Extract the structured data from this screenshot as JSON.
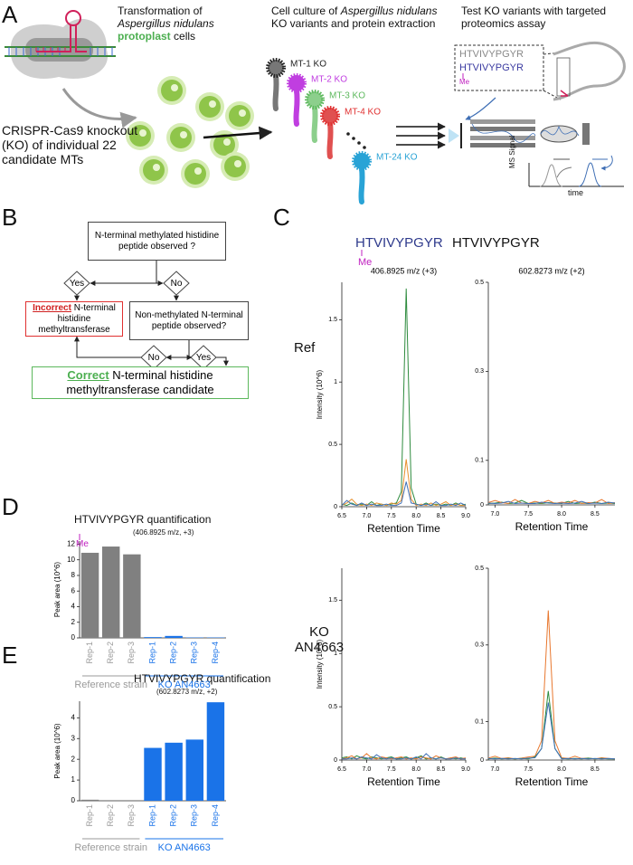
{
  "panel_a": {
    "label": "A",
    "step1": {
      "line1": "Transformation of",
      "organism": "Aspergillus nidulans",
      "highlight": "protoplast",
      "rest": "cells"
    },
    "knockout": "CRISPR-Cas9 knockout (KO) of individual 22 candidate MTs",
    "step2": {
      "line1": "Cell culture of",
      "organism": "Aspergillus nidulans",
      "rest": "KO variants and protein extraction"
    },
    "strains": [
      {
        "label": "MT-1 KO",
        "color": "#222222"
      },
      {
        "label": "MT-2 KO",
        "color": "#c03ee0"
      },
      {
        "label": "MT-3 KO",
        "color": "#5cb85c"
      },
      {
        "label": "MT-4 KO",
        "color": "#e03030"
      },
      {
        "label": "MT-24 KO",
        "color": "#29a3d6"
      }
    ],
    "step3": "Test KO variants with targeted proteomics assay",
    "peptide_plain": "HTVIVYPGYR",
    "peptide_methyl": "HTVIVYPGYR",
    "methyl": "Me",
    "signal_axis": "MS Signal",
    "time_axis": "time"
  },
  "panel_b": {
    "label": "B",
    "question1": "N-terminal methylated histidine peptide observed ?",
    "yes1": "Yes",
    "no1": "No",
    "incorrect": {
      "emphasis": "Incorrect",
      "text": "N-terminal histidine methyltransferase"
    },
    "question2": "Non-methylated N-terminal peptide observed?",
    "no2": "No",
    "yes2": "Yes",
    "correct": {
      "emphasis": "Correct",
      "text": "N-terminal histidine methyltransferase candidate"
    }
  },
  "panel_c": {
    "label": "C",
    "columns": [
      {
        "peptide": "HTVIVYPGYR",
        "methyl": "Me"
      },
      {
        "peptide": "HTVIVYPGYR"
      }
    ],
    "rows": [
      "Ref",
      "KO AN4663"
    ]
  },
  "panel_d": {
    "label": "D"
  },
  "panel_e": {
    "label": "E"
  },
  "chart_data": [
    {
      "type": "line",
      "title": "406.8925 m/z (+3)",
      "x_label": "Retention Time",
      "y_label": "Intensity (10^6)",
      "x": [
        6.5,
        6.6,
        6.7,
        6.8,
        6.9,
        7.0,
        7.1,
        7.2,
        7.3,
        7.4,
        7.5,
        7.6,
        7.7,
        7.8,
        7.9,
        8.0,
        8.1,
        8.2,
        8.3,
        8.4,
        8.5,
        8.6,
        8.7,
        8.8,
        8.9,
        9.0
      ],
      "series": [
        {
          "color": "#2e8b3e",
          "values": [
            0.02,
            0.01,
            0.03,
            0.01,
            0.02,
            0.01,
            0.04,
            0.01,
            0.02,
            0.01,
            0.02,
            0.03,
            0.12,
            1.75,
            0.15,
            0.02,
            0.01,
            0.03,
            0.01,
            0.02,
            0.01,
            0.02,
            0.01,
            0.03,
            0.01,
            0.02
          ]
        },
        {
          "color": "#e8902e",
          "values": [
            0.01,
            0.03,
            0.06,
            0.02,
            0.01,
            0.02,
            0.01,
            0.03,
            0.02,
            0.01,
            0.03,
            0.02,
            0.05,
            0.38,
            0.06,
            0.01,
            0.02,
            0.01,
            0.03,
            0.01,
            0.02,
            0.04,
            0.01,
            0.02,
            0.01,
            0.01
          ]
        },
        {
          "color": "#3f6fb5",
          "values": [
            0.01,
            0.05,
            0.02,
            0.01,
            0.03,
            0.01,
            0.02,
            0.01,
            0.01,
            0.02,
            0.01,
            0.01,
            0.03,
            0.2,
            0.03,
            0.02,
            0.01,
            0.02,
            0.01,
            0.04,
            0.01,
            0.01,
            0.02,
            0.01,
            0.03,
            0.01
          ]
        }
      ],
      "xlim": [
        6.5,
        9.0
      ],
      "xticks": [
        6.5,
        {
          "value": 7,
          "label": "7.0"
        },
        7.5,
        {
          "value": 8,
          "label": "8.0"
        },
        8.5,
        {
          "value": 9,
          "label": "9.0"
        }
      ],
      "ylim": [
        0,
        1.8
      ],
      "yticks": [
        0,
        0.5,
        1,
        1.5
      ]
    },
    {
      "type": "line",
      "title": "602.8273 m/z (+2)",
      "x_label": "Retention Time",
      "x": [
        6.9,
        7.0,
        7.1,
        7.2,
        7.3,
        7.4,
        7.5,
        7.6,
        7.7,
        7.8,
        7.9,
        8.0,
        8.1,
        8.2,
        8.3,
        8.4,
        8.5,
        8.6,
        8.7,
        8.8
      ],
      "series": [
        {
          "color": "#2e8b3e",
          "values": [
            0.003,
            0.004,
            0.006,
            0.003,
            0.004,
            0.01,
            0.003,
            0.004,
            0.003,
            0.005,
            0.004,
            0.003,
            0.008,
            0.003,
            0.004,
            0.003,
            0.006,
            0.003,
            0.004,
            0.003
          ]
        },
        {
          "color": "#e8772e",
          "values": [
            0.005,
            0.01,
            0.005,
            0.003,
            0.012,
            0.004,
            0.003,
            0.008,
            0.004,
            0.01,
            0.003,
            0.006,
            0.004,
            0.01,
            0.003,
            0.005,
            0.004,
            0.012,
            0.003,
            0.005
          ]
        },
        {
          "color": "#3f6fb5",
          "values": [
            0.004,
            0.003,
            0.004,
            0.008,
            0.003,
            0.004,
            0.003,
            0.003,
            0.006,
            0.004,
            0.003,
            0.004,
            0.003,
            0.004,
            0.008,
            0.003,
            0.004,
            0.003,
            0.006,
            0.004
          ]
        }
      ],
      "xlim": [
        6.9,
        8.8
      ],
      "xticks": [
        {
          "value": 7,
          "label": "7.0"
        },
        7.5,
        {
          "value": 8,
          "label": "8.0"
        },
        8.5
      ],
      "ylim": [
        0,
        0.5
      ],
      "yticks": [
        0,
        0.1,
        0.3,
        0.5
      ]
    },
    {
      "type": "line",
      "x_label": "Retention Time",
      "y_label": "Intensity (10^6)",
      "x": [
        6.5,
        6.6,
        6.7,
        6.8,
        6.9,
        7.0,
        7.1,
        7.2,
        7.3,
        7.4,
        7.5,
        7.6,
        7.7,
        7.8,
        7.9,
        8.0,
        8.1,
        8.2,
        8.3,
        8.4,
        8.5,
        8.6,
        8.7,
        8.8,
        8.9,
        9.0
      ],
      "series": [
        {
          "color": "#2e8b3e",
          "values": [
            0.02,
            0.03,
            0.01,
            0.04,
            0.02,
            0.01,
            0.03,
            0.02,
            0.01,
            0.02,
            0.03,
            0.01,
            0.02,
            0.03,
            0.01,
            0.02,
            0.04,
            0.01,
            0.02,
            0.01,
            0.03,
            0.01,
            0.02,
            0.01,
            0.02,
            0.01
          ]
        },
        {
          "color": "#e8772e",
          "values": [
            0.01,
            0.02,
            0.04,
            0.01,
            0.02,
            0.06,
            0.02,
            0.01,
            0.03,
            0.02,
            0.01,
            0.02,
            0.03,
            0.01,
            0.02,
            0.01,
            0.03,
            0.02,
            0.01,
            0.04,
            0.02,
            0.01,
            0.02,
            0.03,
            0.01,
            0.02
          ]
        },
        {
          "color": "#3f6fb5",
          "values": [
            0.01,
            0.01,
            0.02,
            0.01,
            0.03,
            0.02,
            0.01,
            0.05,
            0.02,
            0.01,
            0.02,
            0.01,
            0.01,
            0.02,
            0.01,
            0.03,
            0.01,
            0.06,
            0.02,
            0.01,
            0.02,
            0.01,
            0.01,
            0.02,
            0.01,
            0.01
          ]
        }
      ],
      "xlim": [
        6.5,
        9.0
      ],
      "xticks": [
        6.5,
        {
          "value": 7,
          "label": "7.0"
        },
        7.5,
        {
          "value": 8,
          "label": "8.0"
        },
        8.5,
        {
          "value": 9,
          "label": "9.0"
        }
      ],
      "ylim": [
        0,
        1.8
      ],
      "yticks": [
        0,
        0.5,
        1,
        1.5
      ]
    },
    {
      "type": "line",
      "x_label": "Retention Time",
      "x": [
        6.9,
        7.0,
        7.1,
        7.2,
        7.3,
        7.4,
        7.5,
        7.6,
        7.7,
        7.8,
        7.9,
        8.0,
        8.1,
        8.2,
        8.3,
        8.4,
        8.5,
        8.6,
        8.7,
        8.8
      ],
      "series": [
        {
          "color": "#e8772e",
          "values": [
            0.005,
            0.01,
            0.004,
            0.006,
            0.003,
            0.005,
            0.008,
            0.01,
            0.05,
            0.39,
            0.05,
            0.006,
            0.004,
            0.01,
            0.004,
            0.005,
            0.003,
            0.006,
            0.004,
            0.003
          ]
        },
        {
          "color": "#2e8b3e",
          "values": [
            0.003,
            0.005,
            0.003,
            0.004,
            0.003,
            0.004,
            0.003,
            0.008,
            0.03,
            0.18,
            0.03,
            0.004,
            0.003,
            0.004,
            0.003,
            0.005,
            0.003,
            0.004,
            0.003,
            0.003
          ]
        },
        {
          "color": "#3f6fb5",
          "values": [
            0.004,
            0.003,
            0.004,
            0.003,
            0.004,
            0.003,
            0.005,
            0.006,
            0.03,
            0.15,
            0.03,
            0.003,
            0.004,
            0.003,
            0.004,
            0.003,
            0.004,
            0.003,
            0.004,
            0.003
          ]
        }
      ],
      "xlim": [
        6.9,
        8.8
      ],
      "xticks": [
        {
          "value": 7,
          "label": "7.0"
        },
        7.5,
        {
          "value": 8,
          "label": "8.0"
        },
        8.5
      ],
      "ylim": [
        0,
        0.5
      ],
      "yticks": [
        0,
        0.1,
        0.3,
        0.5
      ]
    },
    {
      "type": "bar",
      "title": "HTVIVYPGYR quantification",
      "methyl": "Me",
      "subtitle": "(406.8925 m/z, +3)",
      "y_label": "Peak area (10^6)",
      "categories": [
        "Rep-1",
        "Rep-2",
        "Rep-3",
        "Rep-1",
        "Rep-2",
        "Rep-3",
        "Rep-4"
      ],
      "values": [
        10.9,
        11.7,
        10.7,
        0.1,
        0.25,
        0.05,
        0.05
      ],
      "colors": [
        "#808080",
        "#808080",
        "#808080",
        "#1a73e8",
        "#1a73e8",
        "#1a73e8",
        "#1a73e8"
      ],
      "groups": [
        {
          "label": "Reference strain",
          "color": "#999999",
          "count": 3
        },
        {
          "label": "KO AN4663",
          "color": "#1a73e8",
          "count": 4
        }
      ],
      "ylim": [
        0,
        12.4
      ],
      "yticks": [
        0,
        2,
        4,
        6,
        8,
        10,
        12
      ]
    },
    {
      "type": "bar",
      "title": "HTVIVYPGYR quantification",
      "subtitle": "(602.8273 m/z, +2)",
      "y_label": "Peak area (10^6)",
      "categories": [
        "Rep-1",
        "Rep-2",
        "Rep-3",
        "Rep-1",
        "Rep-2",
        "Rep-3",
        "Rep-4"
      ],
      "values": [
        0.05,
        0,
        0,
        2.55,
        2.8,
        2.95,
        4.75
      ],
      "colors": [
        "#808080",
        "#808080",
        "#808080",
        "#1a73e8",
        "#1a73e8",
        "#1a73e8",
        "#1a73e8"
      ],
      "groups": [
        {
          "label": "Reference strain",
          "color": "#999999",
          "count": 3
        },
        {
          "label": "KO AN4663",
          "color": "#1a73e8",
          "count": 4
        }
      ],
      "ylim": [
        0,
        4.8
      ],
      "yticks": [
        0,
        1,
        2,
        3,
        4
      ]
    }
  ]
}
